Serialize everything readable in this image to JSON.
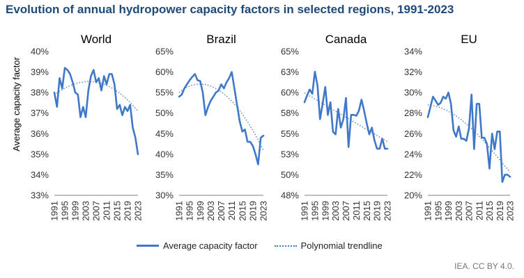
{
  "title": "Evolution of annual hydropower capacity factors in selected regions, 1991-2023",
  "source": "IEA. CC BY 4.0.",
  "y_axis_label": "Average capacity factor",
  "legend": {
    "series_label": "Average capacity factor",
    "trend_label": "Polynomial trendline"
  },
  "colors": {
    "series": "#3f78c9",
    "title": "#1d4a78",
    "axis": "#333333"
  },
  "chart_data": [
    {
      "type": "line",
      "title": "World",
      "ylabel": "Average capacity factor",
      "ylim": [
        33,
        40
      ],
      "yticks": [
        "33%",
        "34%",
        "35%",
        "36%",
        "37%",
        "38%",
        "39%",
        "40%"
      ],
      "xticks": [
        "1991",
        "1995",
        "1999",
        "2003",
        "2007",
        "2011",
        "2015",
        "2019",
        "2023"
      ],
      "x": [
        1991,
        1992,
        1993,
        1994,
        1995,
        1996,
        1997,
        1998,
        1999,
        2000,
        2001,
        2002,
        2003,
        2004,
        2005,
        2006,
        2007,
        2008,
        2009,
        2010,
        2011,
        2012,
        2013,
        2014,
        2015,
        2016,
        2017,
        2018,
        2019,
        2020,
        2021,
        2022,
        2023
      ],
      "series": [
        {
          "name": "Average capacity factor",
          "values": [
            38.0,
            37.3,
            38.7,
            38.2,
            39.2,
            39.1,
            38.9,
            38.5,
            38.0,
            37.9,
            36.8,
            37.3,
            36.8,
            38.1,
            38.8,
            39.1,
            38.5,
            38.7,
            38.1,
            38.8,
            38.4,
            38.9,
            38.9,
            38.4,
            37.2,
            37.4,
            36.9,
            37.3,
            37.1,
            37.4,
            36.3,
            35.8,
            35.0
          ]
        },
        {
          "name": "Polynomial trendline",
          "values": [
            37.88,
            37.97,
            38.06,
            38.14,
            38.21,
            38.27,
            38.33,
            38.38,
            38.43,
            38.46,
            38.49,
            38.51,
            38.53,
            38.54,
            38.53,
            38.52,
            38.5,
            38.48,
            38.44,
            38.4,
            38.35,
            38.29,
            38.22,
            38.15,
            38.06,
            37.97,
            37.87,
            37.76,
            37.64,
            37.51,
            37.38,
            37.24,
            37.09
          ]
        }
      ]
    },
    {
      "type": "line",
      "title": "Brazil",
      "ylim": [
        30,
        65
      ],
      "yticks": [
        "30%",
        "35%",
        "40%",
        "45%",
        "50%",
        "55%",
        "60%",
        "65%"
      ],
      "xticks": [
        "1991",
        "1995",
        "1999",
        "2003",
        "2007",
        "2011",
        "2015",
        "2019",
        "2023"
      ],
      "x": [
        1991,
        1992,
        1993,
        1994,
        1995,
        1996,
        1997,
        1998,
        1999,
        2000,
        2001,
        2002,
        2003,
        2004,
        2005,
        2006,
        2007,
        2008,
        2009,
        2010,
        2011,
        2012,
        2013,
        2014,
        2015,
        2016,
        2017,
        2018,
        2019,
        2020,
        2021,
        2022,
        2023
      ],
      "series": [
        {
          "name": "Average capacity factor",
          "values": [
            54.0,
            54.5,
            56.0,
            57.0,
            58.0,
            58.8,
            59.5,
            58.0,
            57.8,
            55.0,
            49.5,
            51.5,
            53.0,
            54.0,
            55.0,
            55.5,
            57.0,
            56.0,
            57.5,
            58.5,
            60.0,
            56.0,
            52.0,
            48.0,
            45.5,
            46.0,
            43.0,
            43.0,
            42.0,
            40.0,
            37.5,
            44.0,
            44.5
          ]
        },
        {
          "name": "Polynomial trendline",
          "values": [
            55.0,
            55.5,
            55.93,
            56.28,
            56.57,
            56.78,
            56.93,
            57.02,
            57.04,
            57.01,
            56.91,
            56.76,
            56.55,
            56.29,
            55.97,
            55.59,
            55.16,
            54.68,
            54.14,
            53.55,
            52.9,
            52.2,
            51.45,
            50.64,
            49.78,
            48.86,
            47.89,
            46.86,
            45.78,
            44.64,
            43.45,
            42.2,
            40.9
          ]
        }
      ]
    },
    {
      "type": "line",
      "title": "Canada",
      "ylim": [
        48,
        65
      ],
      "yticks": [
        "48%",
        "50%",
        "53%",
        "55%",
        "58%",
        "60%",
        "63%",
        "65%"
      ],
      "xticks": [
        "1991",
        "1995",
        "1999",
        "2003",
        "2007",
        "2011",
        "2015",
        "2019",
        "2023"
      ],
      "x": [
        1991,
        1992,
        1993,
        1994,
        1995,
        1996,
        1997,
        1998,
        1999,
        2000,
        2001,
        2002,
        2003,
        2004,
        2005,
        2006,
        2007,
        2008,
        2009,
        2010,
        2011,
        2012,
        2013,
        2014,
        2015,
        2016,
        2017,
        2018,
        2019,
        2020,
        2021,
        2022,
        2023
      ],
      "series": [
        {
          "name": "Average capacity factor",
          "values": [
            59.0,
            59.8,
            60.5,
            60.0,
            62.6,
            61.0,
            57.0,
            58.8,
            60.8,
            57.5,
            59.0,
            55.5,
            55.2,
            58.2,
            56.0,
            57.0,
            59.5,
            53.7,
            57.5,
            57.5,
            57.4,
            58.0,
            59.3,
            58.0,
            56.5,
            55.2,
            56.0,
            54.5,
            53.5,
            53.5,
            54.7,
            53.5,
            53.5
          ]
        },
        {
          "name": "Polynomial trendline",
          "values": [
            60.1,
            59.92,
            59.74,
            59.56,
            59.38,
            59.2,
            59.02,
            58.84,
            58.66,
            58.48,
            58.3,
            58.12,
            57.94,
            57.76,
            57.58,
            57.4,
            57.22,
            57.04,
            56.86,
            56.68,
            56.5,
            56.32,
            56.14,
            55.96,
            55.78,
            55.6,
            55.42,
            55.24,
            55.06,
            54.88,
            54.7,
            54.52,
            54.34
          ]
        }
      ]
    },
    {
      "type": "line",
      "title": "EU",
      "ylim": [
        20,
        34
      ],
      "yticks": [
        "20%",
        "22%",
        "24%",
        "26%",
        "28%",
        "30%",
        "32%",
        "34%"
      ],
      "xticks": [
        "1991",
        "1995",
        "1999",
        "2003",
        "2007",
        "2011",
        "2015",
        "2019",
        "2023"
      ],
      "x": [
        1991,
        1992,
        1993,
        1994,
        1995,
        1996,
        1997,
        1998,
        1999,
        2000,
        2001,
        2002,
        2003,
        2004,
        2005,
        2006,
        2007,
        2008,
        2009,
        2010,
        2011,
        2012,
        2013,
        2014,
        2015,
        2016,
        2017,
        2018,
        2019,
        2020,
        2021,
        2022,
        2023
      ],
      "series": [
        {
          "name": "Average capacity factor",
          "values": [
            27.6,
            28.6,
            29.6,
            29.2,
            28.8,
            29.0,
            29.6,
            29.4,
            30.0,
            28.9,
            26.3,
            25.7,
            26.7,
            25.5,
            25.5,
            25.3,
            26.5,
            29.8,
            24.5,
            28.9,
            28.9,
            25.6,
            25.6,
            25.0,
            22.6,
            26.0,
            24.5,
            26.2,
            26.2,
            21.3,
            22.0,
            22.0,
            21.8
          ]
        },
        {
          "name": "Polynomial trendline",
          "values": [
            28.8,
            28.77,
            28.73,
            28.67,
            28.6,
            28.51,
            28.41,
            28.3,
            28.17,
            28.03,
            27.88,
            27.72,
            27.54,
            27.35,
            27.15,
            26.94,
            26.72,
            26.49,
            26.25,
            26.0,
            25.74,
            25.47,
            25.2,
            24.92,
            24.63,
            24.34,
            24.04,
            23.74,
            23.44,
            23.14,
            22.84,
            22.54,
            22.24
          ]
        }
      ]
    }
  ]
}
